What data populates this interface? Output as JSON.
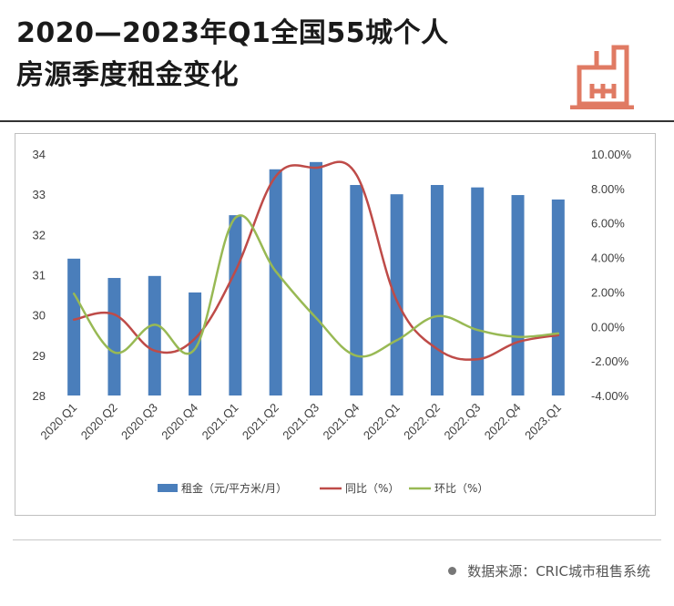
{
  "title": {
    "line1": "2020—2023年Q1全国55城个人",
    "line2": "房源季度租金变化"
  },
  "logo_icon": "building-icon",
  "source": {
    "text": "数据来源：CRIC城市租售系统"
  },
  "colors": {
    "bar": "#4a7ebb",
    "yoy": "#be4b48",
    "qoq": "#98b954",
    "logo": "#e07a63"
  },
  "chart_data": {
    "type": "bar",
    "categories": [
      "2020.Q1",
      "2020.Q2",
      "2020.Q3",
      "2020.Q4",
      "2021.Q1",
      "2021.Q2",
      "2021.Q3",
      "2021.Q4",
      "2022.Q1",
      "2022.Q2",
      "2022.Q3",
      "2022.Q4",
      "2023.Q1"
    ],
    "series": [
      {
        "name": "租金（元/平方米/月）",
        "type": "bar",
        "axis": "left",
        "values": [
          31.4,
          30.92,
          30.97,
          30.56,
          32.48,
          33.62,
          33.8,
          33.23,
          33.0,
          33.23,
          33.17,
          32.98,
          32.87
        ]
      },
      {
        "name": "同比（%）",
        "type": "line",
        "axis": "right",
        "values": [
          0.4,
          0.7,
          -1.4,
          -0.7,
          3.2,
          8.7,
          9.2,
          8.8,
          1.5,
          -1.3,
          -1.9,
          -0.9,
          -0.5
        ]
      },
      {
        "name": "环比（%）",
        "type": "line",
        "axis": "right",
        "values": [
          1.9,
          -1.5,
          0.1,
          -1.3,
          6.3,
          3.2,
          0.5,
          -1.7,
          -0.8,
          0.6,
          -0.2,
          -0.6,
          -0.4
        ]
      }
    ],
    "left_axis": {
      "ylim": [
        28,
        34
      ],
      "ticks": [
        "28",
        "29",
        "30",
        "31",
        "32",
        "33",
        "34"
      ]
    },
    "right_axis": {
      "ylim": [
        -4,
        10
      ],
      "ticks": [
        "-4.00%",
        "-2.00%",
        "0.00%",
        "2.00%",
        "4.00%",
        "6.00%",
        "8.00%",
        "10.00%"
      ]
    },
    "legend_position": "bottom",
    "grid": false
  }
}
